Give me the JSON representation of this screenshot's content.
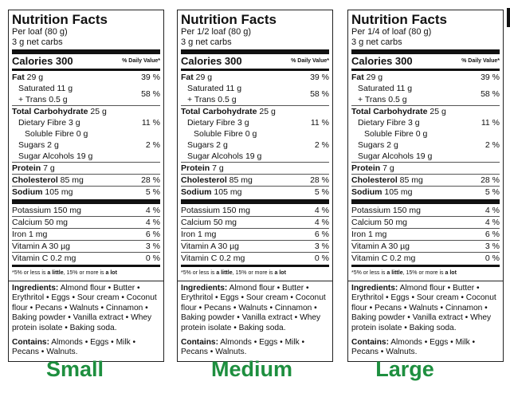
{
  "labels": [
    {
      "title": "Nutrition Facts",
      "serving_line1": "Per loaf (80 g)",
      "serving_line2": "3 g net carbs",
      "calories": "Calories 300",
      "dv_header": "% Daily Value*",
      "fat_name": "Fat",
      "fat_amt": " 29 g",
      "fat_dv": "39 %",
      "sat": "Saturated 11 g",
      "trans": "+ Trans 0.5 g",
      "sat_trans_dv": "58 %",
      "carb_name": "Total Carbohydrate",
      "carb_amt": " 25 g",
      "fibre": "Dietary Fibre 3 g",
      "fibre_dv": "11 %",
      "soluble": "Soluble Fibre 0 g",
      "sugars": "Sugars 2 g",
      "sugars_dv": "2 %",
      "sugar_alcohols": "Sugar Alcohols 19 g",
      "protein_name": "Protein",
      "protein_amt": " 7 g",
      "chol_name": "Cholesterol",
      "chol_amt": " 85 mg",
      "chol_dv": "28 %",
      "sodium_name": "Sodium",
      "sodium_amt": " 105 mg",
      "sodium_dv": "5 %",
      "potassium": "Potassium 150 mg",
      "potassium_dv": "4 %",
      "calcium": "Calcium 50 mg",
      "calcium_dv": "4 %",
      "iron": "Iron 1 mg",
      "iron_dv": "6 %",
      "vit_a": "Vitamin A 30 µg",
      "vit_a_dv": "3 %",
      "vit_c": "Vitamin C 0.2 mg",
      "vit_c_dv": "0 %",
      "footnote_pre": "*5% or less is ",
      "footnote_little": "a little",
      "footnote_mid": ", 15% or more is ",
      "footnote_lot": "a lot",
      "ingredients_head": "Ingredients:",
      "ingredients_text": " Almond flour • Butter • Erythritol • Eggs • Sour cream • Coconut flour • Pecans • Walnuts • Cinnamon • Baking powder • Vanilla extract • Whey protein isolate • Baking soda.",
      "contains_head": "Contains:",
      "contains_text": " Almonds • Eggs • Milk • Pecans • Walnuts.",
      "size_label": "Small"
    },
    {
      "title": "Nutrition Facts",
      "serving_line1": "Per 1/2 loaf (80 g)",
      "serving_line2": "3 g net carbs",
      "calories": "Calories 300",
      "dv_header": "% Daily Value*",
      "fat_name": "Fat",
      "fat_amt": " 29 g",
      "fat_dv": "39 %",
      "sat": "Saturated 11 g",
      "trans": "+ Trans 0.5 g",
      "sat_trans_dv": "58 %",
      "carb_name": "Total Carbohydrate",
      "carb_amt": " 25 g",
      "fibre": "Dietary Fibre 3 g",
      "fibre_dv": "11 %",
      "soluble": "Soluble Fibre 0 g",
      "sugars": "Sugars 2 g",
      "sugars_dv": "2 %",
      "sugar_alcohols": "Sugar Alcohols 19 g",
      "protein_name": "Protein",
      "protein_amt": " 7 g",
      "chol_name": "Cholesterol",
      "chol_amt": " 85 mg",
      "chol_dv": "28 %",
      "sodium_name": "Sodium",
      "sodium_amt": " 105 mg",
      "sodium_dv": "5 %",
      "potassium": "Potassium 150 mg",
      "potassium_dv": "4 %",
      "calcium": "Calcium 50 mg",
      "calcium_dv": "4 %",
      "iron": "Iron 1 mg",
      "iron_dv": "6 %",
      "vit_a": "Vitamin A 30 µg",
      "vit_a_dv": "3 %",
      "vit_c": "Vitamin C 0.2 mg",
      "vit_c_dv": "0 %",
      "footnote_pre": "*5% or less is ",
      "footnote_little": "a little",
      "footnote_mid": ", 15% or more is ",
      "footnote_lot": "a lot",
      "ingredients_head": "Ingredients:",
      "ingredients_text": " Almond flour • Butter • Erythritol • Eggs • Sour cream • Coconut flour • Pecans • Walnuts • Cinnamon • Baking powder • Vanilla extract • Whey protein isolate • Baking soda.",
      "contains_head": "Contains:",
      "contains_text": " Almonds • Eggs • Milk • Pecans • Walnuts.",
      "size_label": "Medium"
    },
    {
      "title": "Nutrition Facts",
      "serving_line1": "Per 1/4 of loaf (80 g)",
      "serving_line2": "3 g net carbs",
      "calories": "Calories 300",
      "dv_header": "% Daily Value*",
      "fat_name": "Fat",
      "fat_amt": " 29 g",
      "fat_dv": "39 %",
      "sat": "Saturated 11 g",
      "trans": "+ Trans 0.5 g",
      "sat_trans_dv": "58 %",
      "carb_name": "Total Carbohydrate",
      "carb_amt": " 25 g",
      "fibre": "Dietary Fibre 3 g",
      "fibre_dv": "11 %",
      "soluble": "Soluble Fibre 0 g",
      "sugars": "Sugars 2 g",
      "sugars_dv": "2 %",
      "sugar_alcohols": "Sugar Alcohols 19 g",
      "protein_name": "Protein",
      "protein_amt": " 7 g",
      "chol_name": "Cholesterol",
      "chol_amt": " 85 mg",
      "chol_dv": "28 %",
      "sodium_name": "Sodium",
      "sodium_amt": " 105 mg",
      "sodium_dv": "5 %",
      "potassium": "Potassium 150 mg",
      "potassium_dv": "4 %",
      "calcium": "Calcium 50 mg",
      "calcium_dv": "4 %",
      "iron": "Iron 1 mg",
      "iron_dv": "6 %",
      "vit_a": "Vitamin A 30 µg",
      "vit_a_dv": "3 %",
      "vit_c": "Vitamin C 0.2 mg",
      "vit_c_dv": "0 %",
      "footnote_pre": "*5% or less is ",
      "footnote_little": "a little",
      "footnote_mid": ", 15% or more is ",
      "footnote_lot": "a lot",
      "ingredients_head": "Ingredients:",
      "ingredients_text": " Almond flour • Butter • Erythritol • Eggs • Sour cream • Coconut flour • Pecans • Walnuts • Cinnamon • Baking powder • Vanilla extract • Whey protein isolate • Baking soda.",
      "contains_head": "Contains:",
      "contains_text": " Almonds • Eggs • Milk • Pecans • Walnuts.",
      "size_label": "Large"
    }
  ],
  "colors": {
    "size_label": "#1e8f3f",
    "rule": "#111111"
  }
}
